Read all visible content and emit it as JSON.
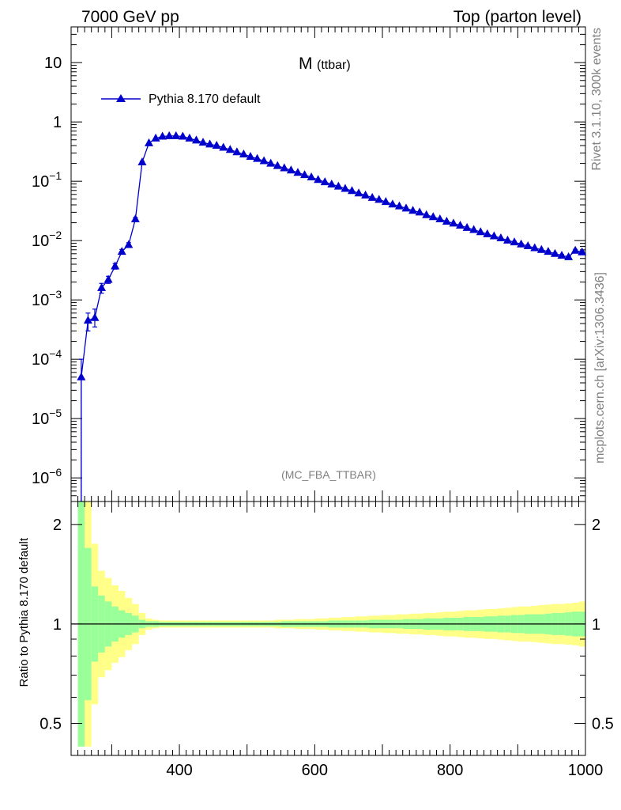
{
  "header": {
    "left": "7000 GeV pp",
    "right": "Top (parton level)"
  },
  "side_text": {
    "rivet": "Rivet 3.1.10,  300k events",
    "source": "mcplots.cern.ch [arXiv:1306.3436]"
  },
  "chart_data": [
    {
      "type": "line",
      "title_main": "M",
      "title_sub": "(ttbar)",
      "watermark": "(MC_FBA_TTBAR)",
      "yscale": "log",
      "xlim": [
        240,
        1000
      ],
      "ylim": [
        4e-07,
        40
      ],
      "grid": false,
      "legend": {
        "placement": "top-left",
        "entries": [
          "Pythia 8.170 default"
        ]
      },
      "series": [
        {
          "name": "Pythia 8.170 default",
          "color": "#0000cc",
          "marker": "triangle",
          "x": [
            255,
            265,
            275,
            285,
            295,
            305,
            315,
            325,
            335,
            345,
            355,
            365,
            375,
            385,
            395,
            405,
            415,
            425,
            435,
            445,
            455,
            465,
            475,
            485,
            495,
            505,
            515,
            525,
            535,
            545,
            555,
            565,
            575,
            585,
            595,
            605,
            615,
            625,
            635,
            645,
            655,
            665,
            675,
            685,
            695,
            705,
            715,
            725,
            735,
            745,
            755,
            765,
            775,
            785,
            795,
            805,
            815,
            825,
            835,
            845,
            855,
            865,
            875,
            885,
            895,
            905,
            915,
            925,
            935,
            945,
            955,
            965,
            975,
            985,
            995
          ],
          "y": [
            5e-05,
            0.00045,
            0.0005,
            0.0016,
            0.0022,
            0.0037,
            0.0065,
            0.0085,
            0.023,
            0.21,
            0.44,
            0.53,
            0.57,
            0.58,
            0.58,
            0.57,
            0.53,
            0.49,
            0.45,
            0.42,
            0.4,
            0.37,
            0.34,
            0.31,
            0.285,
            0.26,
            0.24,
            0.22,
            0.2,
            0.182,
            0.167,
            0.153,
            0.14,
            0.128,
            0.117,
            0.106,
            0.097,
            0.089,
            0.082,
            0.075,
            0.069,
            0.063,
            0.058,
            0.053,
            0.049,
            0.045,
            0.041,
            0.038,
            0.035,
            0.032,
            0.03,
            0.027,
            0.025,
            0.023,
            0.021,
            0.0195,
            0.018,
            0.0165,
            0.0152,
            0.014,
            0.0129,
            0.0119,
            0.011,
            0.0101,
            0.0094,
            0.0087,
            0.0081,
            0.0075,
            0.007,
            0.0065,
            0.006,
            0.0056,
            0.0053,
            0.0068,
            0.0064
          ],
          "err_low": [
            5e-05,
            0.00015,
            0.00015,
            0.0003,
            0.0003,
            0.0004,
            0.0006,
            0.0007,
            0.0015,
            0.008,
            0.01,
            0.01,
            0.01,
            0.01,
            0.01,
            0.01,
            0.009,
            0.008,
            0.007,
            0.007,
            0.006,
            0.006,
            0.005,
            0.005,
            0.004,
            0.004,
            0.004,
            0.003,
            0.003,
            0.003,
            0.002,
            0.002,
            0.002,
            0.002,
            0.002,
            0.0015,
            0.0015,
            0.0014,
            0.0013,
            0.0012,
            0.0011,
            0.001,
            0.0009,
            0.0009,
            0.0008,
            0.0008,
            0.0007,
            0.0007,
            0.0006,
            0.0006,
            0.0006,
            0.0005,
            0.0005,
            0.0005,
            0.0004,
            0.0004,
            0.0004,
            0.0004,
            0.0004,
            0.0003,
            0.0003,
            0.0003,
            0.0003,
            0.0003,
            0.0003,
            0.0003,
            0.0003,
            0.0002,
            0.0002,
            0.0002,
            0.0002,
            0.0002,
            0.0002,
            0.0003,
            0.0003
          ],
          "err_high": [
            5e-05,
            0.00015,
            0.0002,
            0.0003,
            0.0003,
            0.0004,
            0.0006,
            0.0007,
            0.0015,
            0.008,
            0.01,
            0.01,
            0.01,
            0.01,
            0.01,
            0.01,
            0.009,
            0.008,
            0.007,
            0.007,
            0.006,
            0.006,
            0.005,
            0.005,
            0.004,
            0.004,
            0.004,
            0.003,
            0.003,
            0.003,
            0.002,
            0.002,
            0.002,
            0.002,
            0.002,
            0.0015,
            0.0015,
            0.0014,
            0.0013,
            0.0012,
            0.0011,
            0.001,
            0.0009,
            0.0009,
            0.0008,
            0.0008,
            0.0007,
            0.0007,
            0.0006,
            0.0006,
            0.0006,
            0.0005,
            0.0005,
            0.0005,
            0.0004,
            0.0004,
            0.0004,
            0.0004,
            0.0004,
            0.0003,
            0.0003,
            0.0003,
            0.0003,
            0.0003,
            0.0003,
            0.0003,
            0.0003,
            0.0002,
            0.0002,
            0.0002,
            0.0002,
            0.0002,
            0.0002,
            0.0003,
            0.0003
          ]
        }
      ],
      "yticks": [
        {
          "mantissa": "10",
          "exp": "",
          "value": 10
        },
        {
          "mantissa": "1",
          "exp": "",
          "value": 1
        },
        {
          "mantissa": "10",
          "exp": "−1",
          "value": 0.1
        },
        {
          "mantissa": "10",
          "exp": "−2",
          "value": 0.01
        },
        {
          "mantissa": "10",
          "exp": "−3",
          "value": 0.001
        },
        {
          "mantissa": "10",
          "exp": "−4",
          "value": 0.0001
        },
        {
          "mantissa": "10",
          "exp": "−5",
          "value": 1e-05
        },
        {
          "mantissa": "10",
          "exp": "−6",
          "value": 1e-06
        }
      ]
    },
    {
      "type": "area",
      "ylabel": "Ratio to Pythia 8.170 default",
      "yscale": "log",
      "xlim": [
        240,
        1000
      ],
      "ylim": [
        0.4,
        2.35
      ],
      "reference_line": 1,
      "colors": {
        "inner_band": "#99ff99",
        "outer_band": "#ffff88",
        "reference": "#000000"
      },
      "x_edges": [
        250,
        260,
        270,
        280,
        290,
        300,
        310,
        320,
        330,
        340,
        350,
        360,
        370,
        380,
        390,
        400,
        410,
        420,
        430,
        440,
        450,
        460,
        470,
        480,
        490,
        500,
        510,
        520,
        530,
        540,
        550,
        560,
        570,
        580,
        590,
        600,
        610,
        620,
        630,
        640,
        650,
        660,
        670,
        680,
        690,
        700,
        710,
        720,
        730,
        740,
        750,
        760,
        770,
        780,
        790,
        800,
        810,
        820,
        830,
        840,
        850,
        860,
        870,
        880,
        890,
        900,
        910,
        920,
        930,
        940,
        950,
        960,
        970,
        980,
        990,
        1000
      ],
      "inner_band": [
        2.35,
        1.7,
        1.3,
        1.22,
        1.17,
        1.13,
        1.1,
        1.08,
        1.06,
        1.03,
        1.02,
        1.02,
        1.015,
        1.015,
        1.015,
        1.015,
        1.015,
        1.015,
        1.015,
        1.015,
        1.015,
        1.015,
        1.015,
        1.015,
        1.015,
        1.015,
        1.015,
        1.015,
        1.015,
        1.015,
        1.02,
        1.02,
        1.02,
        1.02,
        1.02,
        1.02,
        1.02,
        1.025,
        1.025,
        1.025,
        1.025,
        1.025,
        1.025,
        1.03,
        1.03,
        1.03,
        1.03,
        1.03,
        1.035,
        1.035,
        1.035,
        1.04,
        1.04,
        1.04,
        1.045,
        1.045,
        1.045,
        1.05,
        1.05,
        1.05,
        1.055,
        1.055,
        1.06,
        1.06,
        1.065,
        1.065,
        1.07,
        1.07,
        1.07,
        1.075,
        1.08,
        1.08,
        1.085,
        1.09,
        1.09
      ],
      "outer_band": [
        2.35,
        2.35,
        1.75,
        1.45,
        1.38,
        1.31,
        1.26,
        1.2,
        1.15,
        1.08,
        1.04,
        1.03,
        1.025,
        1.025,
        1.025,
        1.025,
        1.025,
        1.025,
        1.025,
        1.025,
        1.025,
        1.025,
        1.025,
        1.025,
        1.025,
        1.025,
        1.025,
        1.025,
        1.025,
        1.03,
        1.03,
        1.03,
        1.035,
        1.035,
        1.035,
        1.04,
        1.04,
        1.045,
        1.045,
        1.05,
        1.05,
        1.055,
        1.055,
        1.06,
        1.06,
        1.065,
        1.065,
        1.07,
        1.07,
        1.075,
        1.075,
        1.08,
        1.08,
        1.085,
        1.09,
        1.09,
        1.095,
        1.1,
        1.1,
        1.105,
        1.11,
        1.11,
        1.115,
        1.12,
        1.125,
        1.13,
        1.13,
        1.135,
        1.14,
        1.145,
        1.15,
        1.15,
        1.155,
        1.16,
        1.17
      ],
      "xticks": [
        400,
        600,
        800,
        1000
      ],
      "yticks": [
        {
          "label": "2",
          "value": 2
        },
        {
          "label": "1",
          "value": 1
        },
        {
          "label": "0.5",
          "value": 0.5
        }
      ]
    }
  ]
}
